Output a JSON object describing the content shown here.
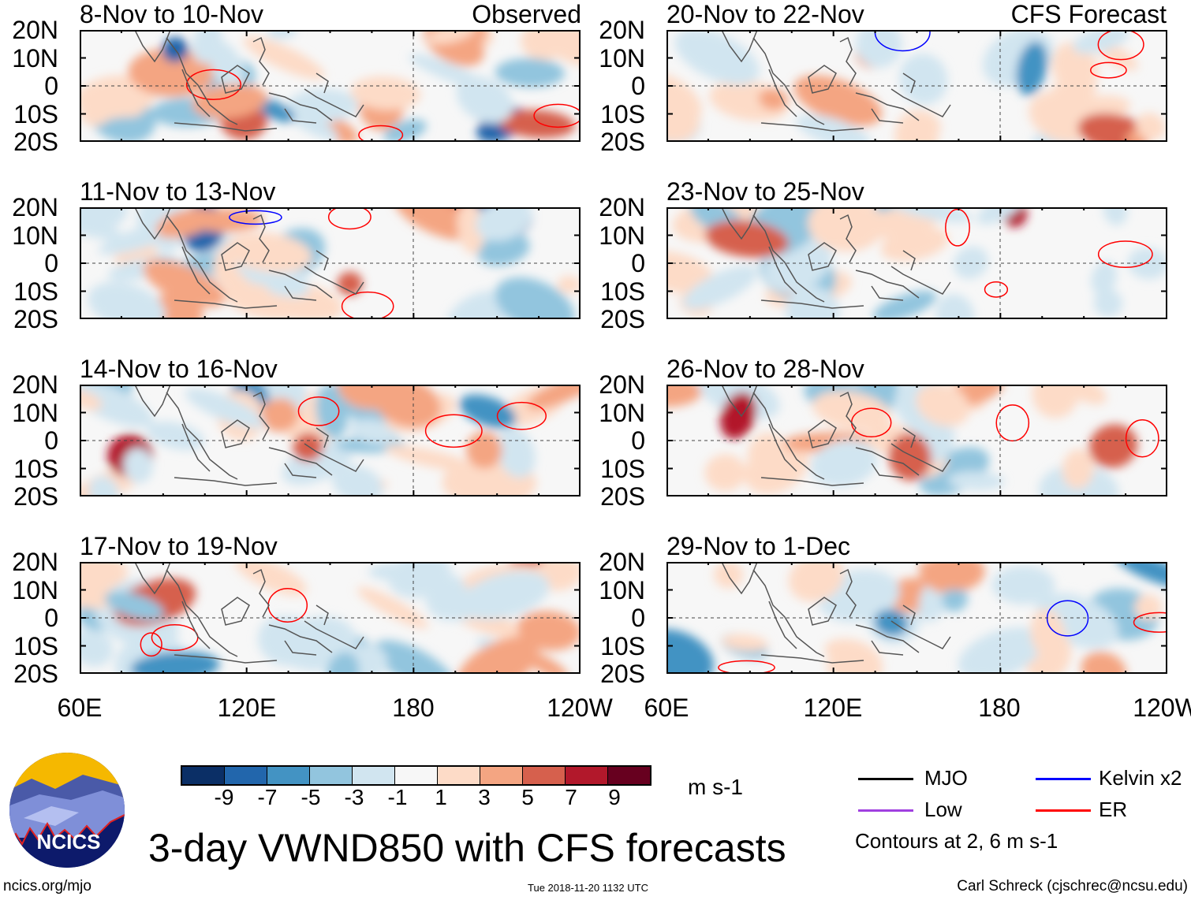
{
  "figure": {
    "title": "3-day VWND850 with CFS forecasts",
    "left_column_label": "Observed",
    "right_column_label": "CFS Forecast",
    "website": "ncics.org/mjo",
    "timestamp": "Tue 2018-11-20 1132 UTC",
    "author": "Carl Schreck (cjschrec@ncsu.edu)",
    "logo_text": "NCICS"
  },
  "panels": [
    {
      "title": "8-Nov to 10-Nov",
      "type": "observed"
    },
    {
      "title": "11-Nov to 13-Nov",
      "type": "observed"
    },
    {
      "title": "14-Nov to 16-Nov",
      "type": "observed"
    },
    {
      "title": "17-Nov to 19-Nov",
      "type": "observed"
    },
    {
      "title": "20-Nov to 22-Nov",
      "type": "forecast"
    },
    {
      "title": "23-Nov to 25-Nov",
      "type": "forecast"
    },
    {
      "title": "26-Nov to 28-Nov",
      "type": "forecast"
    },
    {
      "title": "29-Nov to 1-Dec",
      "type": "forecast"
    }
  ],
  "axes": {
    "lat_labels": [
      "20N",
      "10N",
      "0",
      "10S",
      "20S"
    ],
    "lon_labels": [
      "60E",
      "120E",
      "180",
      "120W"
    ]
  },
  "colorbar": {
    "units": "m s-1",
    "tick_labels": [
      "-9",
      "-7",
      "-5",
      "-3",
      "-1",
      "1",
      "3",
      "5",
      "7",
      "9"
    ],
    "colors": [
      "#0b2f66",
      "#2266ac",
      "#4393c3",
      "#92c5de",
      "#d1e5f0",
      "#f7f7f7",
      "#fddbc7",
      "#f4a582",
      "#d6604d",
      "#b2182b",
      "#67001f"
    ]
  },
  "legend": {
    "items": [
      {
        "label": "MJO",
        "color": "#000000"
      },
      {
        "label": "Kelvin x2",
        "color": "#0000ff"
      },
      {
        "label": "Low",
        "color": "#a040e0"
      },
      {
        "label": "ER",
        "color": "#ff0000"
      }
    ],
    "contour_note": "Contours at 2, 6 m s-1"
  }
}
